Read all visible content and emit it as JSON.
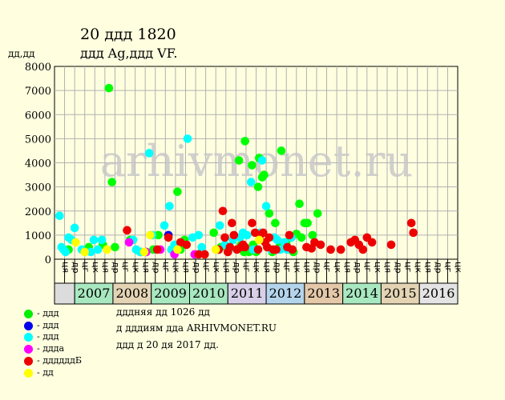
{
  "header": {
    "title": "20 ддд 1820",
    "subtitle": "ддд Ag,ддд VF.",
    "ylabel": "дд,дд"
  },
  "watermark": "arhivmonet.ru",
  "footer": {
    "line1": "дддняя дд 1026 дд",
    "line2": "д дддиям дда ARHIVMONET.RU",
    "line3": "ддд д 20 дя 2017 дд."
  },
  "legend": [
    {
      "label": "- ддд",
      "color": "#00ee00"
    },
    {
      "label": "- ддд",
      "color": "#0000ee"
    },
    {
      "label": "- ддд",
      "color": "#00ffff"
    },
    {
      "label": "- дддa",
      "color": "#ff00ff"
    },
    {
      "label": "- ддддддБ",
      "color": "#ee0000"
    },
    {
      "label": "- дд",
      "color": "#ffff00"
    }
  ],
  "chart_data": {
    "type": "scatter",
    "title": "20 ддд 1820",
    "subtitle": "ддд Ag,ддд VF.",
    "ylabel": "дд,дд",
    "ylim": [
      0,
      8000
    ],
    "yticks": [
      0,
      1000,
      2000,
      3000,
      4000,
      5000,
      6000,
      7000,
      8000
    ],
    "grid": true,
    "x_quarter_labels": [
      "ця",
      "др",
      "цг",
      "цк",
      "ця",
      "др",
      "цг",
      "цк",
      "ця",
      "др",
      "цг",
      "цк",
      "ця",
      "др",
      "цг",
      "цк",
      "ця",
      "др",
      "цг",
      "цк",
      "ця",
      "др",
      "цг",
      "цк",
      "ця",
      "др",
      "цг",
      "цк",
      "ця",
      "др",
      "цг",
      "цк",
      "ця",
      "др",
      "цг",
      "цк",
      "ця",
      "др",
      "цг",
      "цк"
    ],
    "x_year_labels": [
      "2007",
      "2008",
      "2009",
      "2010",
      "2011",
      "2012",
      "2013",
      "2014",
      "2015",
      "2016"
    ],
    "year_colors": [
      "#a8e8c0",
      "#e4d4b4",
      "#a8e8c0",
      "#a8e8c0",
      "#d8d0e8",
      "#b4d4ec",
      "#e4c8a8",
      "#a8e8c0",
      "#e4d4b4",
      "#e4e4e4"
    ],
    "series": [
      {
        "color": "#00ff00",
        "x": [
          0.9,
          2.9,
          4.3,
          5.2,
          4.9,
          5.5,
          7.0,
          8.1,
          9.3,
          9.8,
          11.7,
          12.0,
          12.4,
          15.3,
          15.7,
          16.0,
          16.9,
          17.8,
          18.0,
          18.3,
          18.8,
          18.4,
          19.1,
          19.2,
          19.5,
          19.8,
          20.1,
          19.7,
          20.3,
          20.8,
          21.1,
          21.4,
          21.8,
          22.0,
          22.5,
          23.2,
          23.5,
          23.8,
          24.0,
          24.3,
          24.6,
          25.1,
          25.6
        ],
        "y": [
          400,
          500,
          600,
          3200,
          7100,
          500,
          800,
          300,
          400,
          1000,
          2800,
          400,
          800,
          1100,
          400,
          500,
          500,
          4100,
          600,
          300,
          300,
          4900,
          3900,
          600,
          300,
          4200,
          3400,
          3000,
          3500,
          1900,
          300,
          1500,
          500,
          4500,
          700,
          300,
          1050,
          2300,
          900,
          1500,
          1500,
          1000,
          1900
        ]
      },
      {
        "color": "#0000ee",
        "x": [
          10.8
        ],
        "y": [
          1000
        ]
      },
      {
        "color": "#00ffff",
        "x": [
          0.0,
          0.2,
          0.4,
          0.6,
          0.9,
          1.2,
          1.5,
          2.2,
          3.1,
          3.4,
          3.8,
          4.2,
          7.3,
          7.6,
          8.0,
          8.9,
          9.2,
          10.4,
          10.9,
          11.1,
          11.4,
          12.7,
          13.2,
          13.8,
          14.1,
          15.9,
          16.4,
          16.8,
          17.2,
          17.9,
          18.2,
          18.6,
          19.0,
          19.2,
          19.9,
          20.1,
          20.5,
          21.0,
          21.3,
          21.6,
          21.9,
          22.3,
          22.6,
          23.0
        ],
        "y": [
          1800,
          500,
          400,
          300,
          900,
          800,
          1300,
          400,
          300,
          800,
          400,
          800,
          800,
          400,
          300,
          4400,
          1000,
          1400,
          2200,
          400,
          600,
          5000,
          900,
          1000,
          500,
          1400,
          600,
          400,
          800,
          900,
          1100,
          1000,
          3200,
          400,
          1100,
          4100,
          2200,
          400,
          900,
          800,
          400,
          700,
          400,
          900
        ]
      },
      {
        "color": "#ff00ff",
        "x": [
          6.9,
          8.6,
          10.0,
          11.4,
          13.4
        ],
        "y": [
          700,
          300,
          400,
          200,
          200
        ]
      },
      {
        "color": "#ee0000",
        "x": [
          6.7,
          9.7,
          10.8,
          12.0,
          12.6,
          13.8,
          14.4,
          15.8,
          16.2,
          16.4,
          16.7,
          16.9,
          17.1,
          17.3,
          17.6,
          18.0,
          18.2,
          18.4,
          19.1,
          19.4,
          19.7,
          19.9,
          20.2,
          20.4,
          20.6,
          20.8,
          21.2,
          21.5,
          22.6,
          22.8,
          23.1,
          24.5,
          25.0,
          25.3,
          25.9,
          26.9,
          27.9,
          28.9,
          29.3,
          29.7,
          30.1,
          30.5,
          31.0,
          32.9,
          34.9,
          35.1
        ],
        "y": [
          1200,
          400,
          900,
          700,
          600,
          200,
          200,
          400,
          2000,
          900,
          300,
          500,
          1500,
          1000,
          400,
          500,
          600,
          500,
          1500,
          1100,
          400,
          1000,
          1100,
          700,
          500,
          900,
          400,
          400,
          500,
          1000,
          400,
          500,
          450,
          700,
          600,
          400,
          400,
          700,
          800,
          600,
          400,
          900,
          700,
          600,
          1500,
          1100
        ]
      },
      {
        "color": "#ffff00",
        "x": [
          1.6,
          2.5,
          4.7,
          8.4,
          9.0,
          11.7,
          15.5,
          19.8
        ],
        "y": [
          700,
          300,
          400,
          300,
          1000,
          400,
          400,
          800
        ]
      }
    ]
  }
}
